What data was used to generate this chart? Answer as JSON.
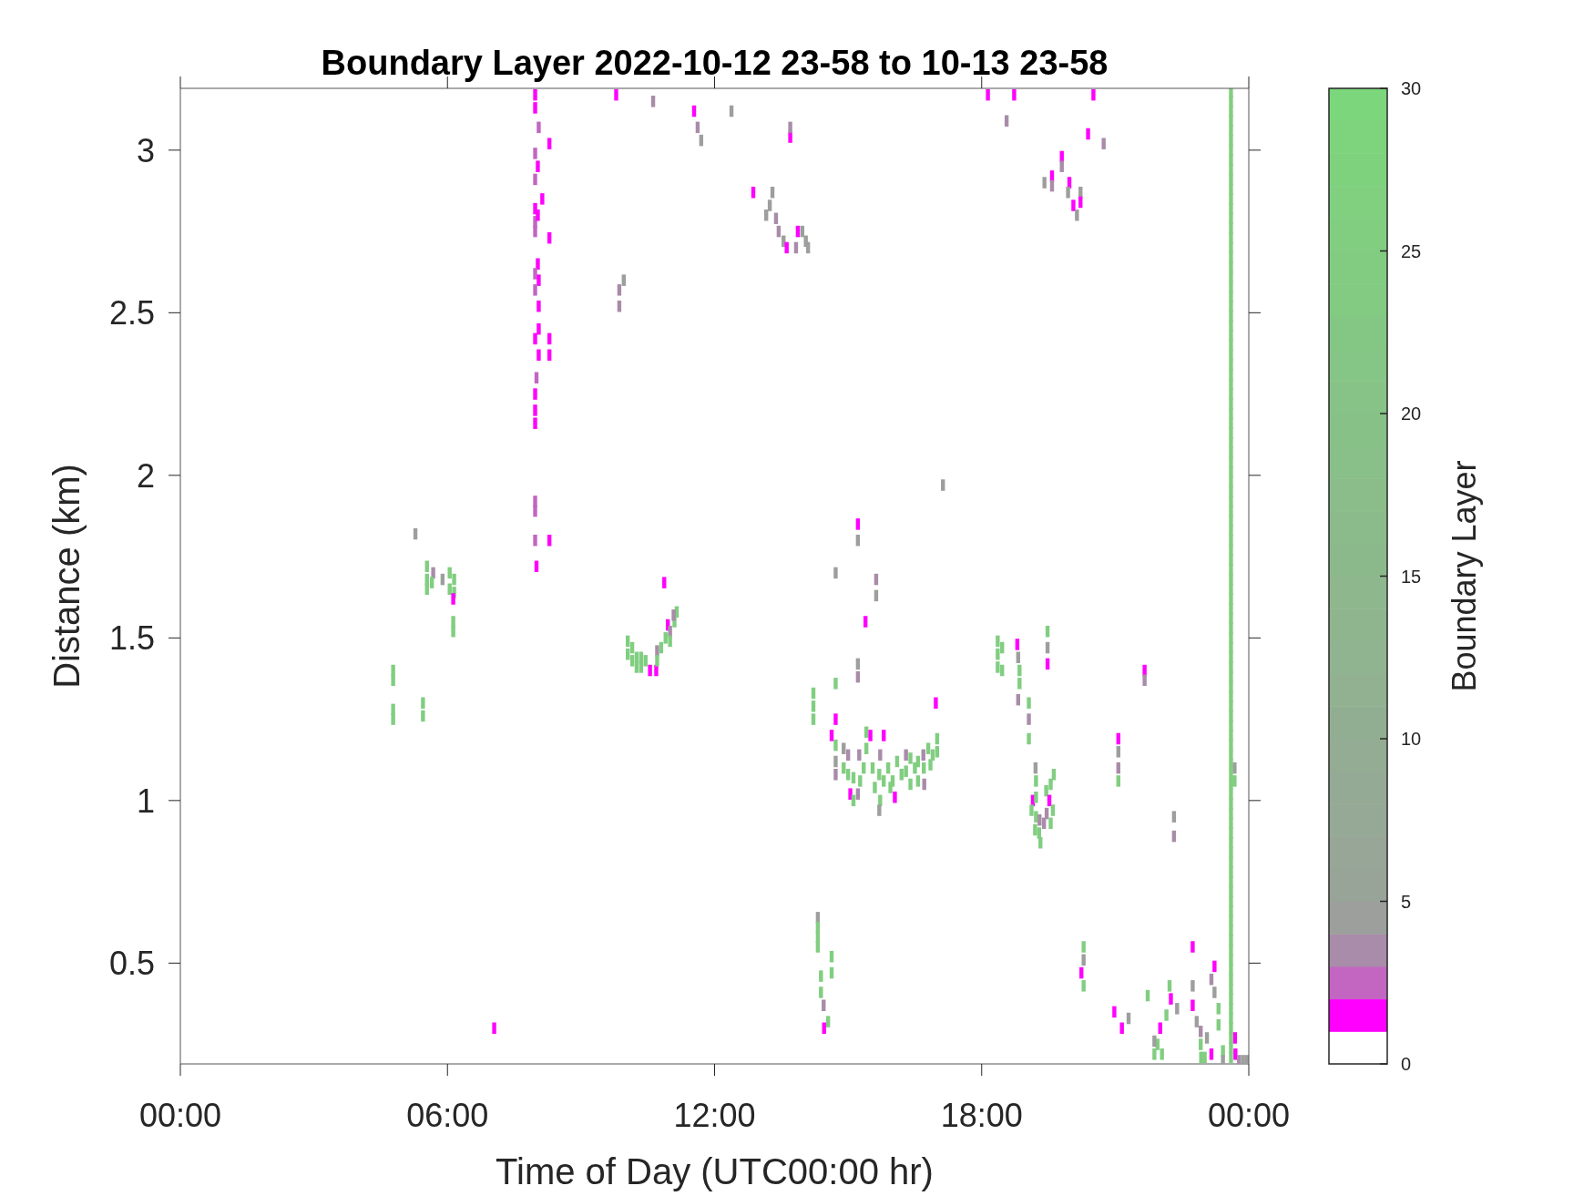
{
  "chart_data": {
    "type": "scatter",
    "title": "Boundary Layer 2022-10-12 23-58 to 10-13 23-58",
    "xlabel": "Time of Day (UTC00:00 hr)",
    "ylabel": "Distance (km)",
    "clabel": "Boundary Layer",
    "x": [
      7.97,
      7.97,
      8.05,
      8.29,
      7.97,
      8.03,
      7.97,
      8.13,
      7.97,
      7.97,
      8.03,
      7.97,
      8.29,
      8.03,
      7.97,
      8.05,
      7.97,
      8.05,
      8.05,
      7.97,
      8.29,
      8.05,
      8.29,
      8,
      7.97,
      7.97,
      7.97,
      7.97,
      7.97,
      7.97,
      8.29,
      8,
      9.79,
      10.62,
      9.96,
      9.86,
      9.86,
      5.28,
      5.54,
      5.54,
      5.54,
      5.68,
      5.65,
      5.89,
      6.05,
      6.15,
      6.15,
      6.05,
      6.13,
      6.13,
      6.13,
      4.78,
      4.78,
      4.78,
      4.78,
      5.45,
      5.45,
      7.05,
      10.05,
      10.05,
      10.15,
      10.15,
      10.25,
      10.25,
      10.35,
      10.35,
      10.45,
      10.55,
      10.69,
      10.71,
      10.71,
      10.8,
      10.95,
      11,
      11.1,
      11.15,
      11,
      11.08,
      10.87,
      10.9,
      11.54,
      12.38,
      11.62,
      11.7,
      13.7,
      13.7,
      12.87,
      13.3,
      13.24,
      13.16,
      13.38,
      13.44,
      13.55,
      13.62,
      13.83,
      13.87,
      13.97,
      14.05,
      14.1,
      17.13,
      15.22,
      15.22,
      14.72,
      15.63,
      15.63,
      15.39,
      15.22,
      15.22,
      14.72,
      14.22,
      14.22,
      14.22,
      16.97,
      14.72,
      14.63,
      14.72,
      14.72,
      14.72,
      14.9,
      14.9,
      15,
      15.05,
      15.12,
      15.12,
      15.25,
      15.27,
      15.22,
      15.41,
      15.41,
      15.5,
      15.8,
      15.55,
      15.6,
      15.7,
      15.72,
      15.72,
      15.7,
      15.9,
      16,
      16.1,
      15.95,
      16.05,
      16.3,
      16.3,
      16.4,
      16.4,
      16.57,
      16.57,
      16.7,
      16.69,
      16.8,
      16.9,
      17,
      17,
      16.71,
      14.32,
      14.32,
      14.32,
      14.63,
      14.63,
      14.39,
      14.39,
      14.45,
      14.46,
      14.55,
      15.8,
      16.2,
      15.35,
      16.5,
      15,
      16.85,
      18.14,
      18.73,
      20.51,
      18.56,
      20.39,
      20.74,
      19.8,
      19.8,
      19.41,
      19.58,
      19.58,
      19.97,
      19.94,
      20.06,
      20.22,
      20.22,
      20.14,
      18.36,
      18.36,
      18.36,
      18.46,
      18.46,
      18.8,
      18.82,
      18.85,
      18.85,
      18.82,
      19.48,
      19.48,
      19.48,
      19.06,
      19.06,
      19.06,
      21.66,
      21.66,
      21.07,
      21.07,
      21.07,
      21.07,
      19.21,
      19.22,
      19.15,
      19.12,
      19.22,
      19.22,
      19.3,
      19.29,
      19.2,
      19.32,
      19.45,
      19.52,
      19.46,
      19.55,
      19.6,
      19.62,
      19.4,
      19.55,
      22.32,
      22.32,
      20.29,
      20.29,
      20.24,
      20.29,
      22.74,
      23.23,
      23.16,
      23.23,
      23.32,
      23.32,
      20.98,
      21.15,
      21.3,
      21.73,
      22.01,
      22.22,
      22.25,
      22.15,
      22.39,
      22.74,
      22.74,
      22.83,
      22.92,
      22.92,
      23.06,
      23.16,
      22.93,
      23.01,
      21.88,
      21.95,
      22.05,
      21.88,
      23.42,
      23.42,
      23.69,
      23.7,
      23.78,
      23.87,
      23.96,
      23.68,
      23.68,
      14.32,
      23.6,
      23.6,
      23.6,
      23.6,
      23.6,
      23.6,
      23.6,
      23.6,
      23.6,
      23.6,
      23.6,
      23.6,
      23.6,
      23.6,
      23.6,
      23.6,
      23.6,
      23.6,
      23.6,
      23.6,
      23.6,
      23.6,
      23.6,
      23.6,
      23.6,
      23.6,
      23.6,
      23.6,
      23.6,
      23.6,
      23.6,
      23.6,
      23.6,
      23.6,
      23.6,
      23.6,
      23.6,
      23.6,
      23.6,
      23.6,
      23.6,
      23.6,
      23.6,
      23.6,
      23.6,
      23.6,
      23.6,
      23.6,
      23.6,
      23.6,
      23.6,
      23.6,
      23.6,
      23.6,
      23.6,
      23.6,
      23.6,
      23.6,
      23.6,
      23.6,
      23.6,
      23.6,
      23.6,
      23.6,
      23.6,
      23.6,
      23.6,
      23.6,
      23.6,
      23.6,
      23.6,
      23.6,
      23.6,
      23.6,
      23.6,
      23.6,
      23.6,
      23.6,
      23.6,
      23.6,
      23.6,
      23.6,
      23.6,
      23.6,
      23.6,
      23.6,
      23.6,
      23.6,
      23.6,
      23.6,
      23.6,
      23.6,
      23.6,
      23.6,
      23.6,
      23.6,
      23.6,
      23.6,
      23.6,
      23.6
    ],
    "values": [
      3.17,
      3.13,
      3.07,
      3.02,
      2.99,
      2.95,
      2.91,
      2.85,
      2.82,
      2.78,
      2.8,
      2.75,
      2.73,
      2.65,
      2.62,
      2.6,
      2.57,
      2.52,
      2.45,
      2.42,
      2.42,
      2.37,
      2.37,
      2.3,
      2.25,
      2.2,
      2.16,
      1.92,
      1.89,
      1.8,
      1.8,
      1.72,
      3.17,
      3.15,
      2.6,
      2.57,
      2.52,
      1.82,
      1.72,
      1.68,
      1.65,
      1.7,
      1.67,
      1.68,
      1.7,
      1.68,
      1.64,
      1.65,
      1.62,
      1.55,
      1.52,
      1.4,
      1.37,
      1.28,
      1.25,
      1.3,
      1.26,
      0.3,
      1.49,
      1.45,
      1.47,
      1.43,
      1.44,
      1.41,
      1.44,
      1.41,
      1.43,
      1.4,
      1.4,
      1.46,
      1.43,
      1.47,
      1.54,
      1.52,
      1.55,
      1.58,
      1.49,
      1.57,
      1.67,
      1.5,
      3.12,
      3.12,
      3.07,
      3.03,
      3.04,
      3.07,
      2.87,
      2.87,
      2.83,
      2.8,
      2.79,
      2.75,
      2.72,
      2.7,
      2.7,
      2.75,
      2.75,
      2.72,
      2.7,
      1.97,
      1.85,
      1.8,
      1.7,
      1.68,
      1.63,
      1.55,
      1.42,
      1.38,
      1.36,
      1.33,
      1.29,
      1.25,
      1.3,
      1.25,
      1.2,
      1.17,
      1.12,
      1.08,
      1.16,
      1.1,
      1.14,
      1.02,
      1.07,
      1,
      1.14,
      1.06,
      1.02,
      1.21,
      1.16,
      1.2,
      1.2,
      1.1,
      1.04,
      1.08,
      1,
      1.14,
      0.97,
      1.1,
      1.06,
      1.12,
      1.04,
      1.01,
      1.09,
      1.14,
      1.05,
      1.13,
      1.12,
      1.06,
      1.1,
      1.14,
      1.16,
      1.14,
      1.15,
      1.19,
      1.05,
      0.64,
      0.61,
      0.55,
      0.52,
      0.47,
      0.46,
      0.41,
      0.37,
      0.3,
      0.32,
      1.06,
      1.08,
      1.1,
      1.1,
      1.08,
      1.11,
      3.17,
      3.17,
      3.17,
      3.09,
      3.05,
      3.02,
      2.98,
      2.95,
      2.9,
      2.92,
      2.89,
      2.9,
      2.87,
      2.83,
      2.87,
      2.84,
      2.8,
      1.49,
      1.45,
      1.41,
      1.47,
      1.4,
      1.48,
      1.44,
      1.4,
      1.36,
      1.31,
      1.52,
      1.47,
      1.42,
      1.3,
      1.25,
      1.19,
      1.4,
      1.37,
      1.19,
      1.15,
      1.1,
      1.06,
      1.1,
      1.06,
      1,
      0.97,
      1.01,
      0.95,
      0.94,
      0.9,
      0.91,
      0.87,
      1.03,
      1,
      0.96,
      1.05,
      0.97,
      1.08,
      0.93,
      0.93,
      0.95,
      0.89,
      0.55,
      0.51,
      0.47,
      0.43,
      0.55,
      0.49,
      0.45,
      0.41,
      0.36,
      0.31,
      0.35,
      0.3,
      0.33,
      0.4,
      0.3,
      0.43,
      0.39,
      0.34,
      0.36,
      0.43,
      0.37,
      0.32,
      0.29,
      0.25,
      0.27,
      0.22,
      0.21,
      0.21,
      0.22,
      0.25,
      0.22,
      0.26,
      0.23,
      0.2,
      0.27,
      0.22,
      0.2,
      0.2,
      0.2,
      1.1,
      1.06,
      0.58,
      0.21,
      0.24,
      0.27,
      0.3,
      0.33,
      0.36,
      0.39,
      0.42,
      0.45,
      0.48,
      0.51,
      0.54,
      0.57,
      0.6,
      0.63,
      0.66,
      0.69,
      0.72,
      0.75,
      0.78,
      0.81,
      0.84,
      0.87,
      0.9,
      0.93,
      0.96,
      0.99,
      1.02,
      1.05,
      1.08,
      1.11,
      1.14,
      1.17,
      1.2,
      1.23,
      1.26,
      1.29,
      1.32,
      1.35,
      1.38,
      1.41,
      1.44,
      1.47,
      1.5,
      1.53,
      1.56,
      1.59,
      1.62,
      1.65,
      1.68,
      1.71,
      1.74,
      1.77,
      1.8,
      1.83,
      1.86,
      1.89,
      1.92,
      1.95,
      1.98,
      2.01,
      2.04,
      2.07,
      2.1,
      2.13,
      2.16,
      2.19,
      2.22,
      2.25,
      2.28,
      2.31,
      2.34,
      2.37,
      2.4,
      2.43,
      2.46,
      2.49,
      2.52,
      2.55,
      2.58,
      2.61,
      2.64,
      2.67,
      2.7,
      2.73,
      2.76,
      2.79,
      2.82,
      2.85,
      2.88,
      2.91,
      2.94,
      2.97,
      3,
      3.03,
      3.06,
      3.09,
      3.12,
      3.15,
      3.18
    ],
    "cvalues": [
      1.5,
      1.5,
      2.5,
      1.5,
      2.5,
      1.5,
      2.5,
      1.5,
      1.5,
      2.5,
      1.5,
      2.5,
      1.5,
      1.5,
      2.5,
      1.5,
      2.5,
      1.5,
      1.5,
      1.5,
      1.5,
      1.5,
      1.5,
      2.5,
      1.5,
      1.5,
      1.5,
      2.5,
      2.5,
      2.5,
      1.5,
      1.5,
      1.5,
      3.5,
      4.5,
      3.5,
      3.5,
      4.5,
      25,
      25,
      25,
      3.5,
      25,
      4.5,
      25,
      25,
      25,
      25,
      1.5,
      25,
      25,
      25,
      25,
      25,
      25,
      25,
      25,
      1.5,
      25,
      25,
      25,
      25,
      25,
      25,
      25,
      25,
      25,
      1.5,
      1.5,
      3.5,
      25,
      25,
      1.5,
      3.5,
      25,
      25,
      25,
      3.5,
      1.5,
      25,
      1.5,
      4.5,
      3.5,
      4.5,
      1.5,
      3.5,
      1.5,
      4.5,
      4.5,
      4.5,
      3.5,
      3.5,
      4.5,
      1.5,
      3.5,
      1.5,
      4.5,
      4.5,
      4.5,
      4.5,
      1.5,
      4.5,
      4.5,
      3.5,
      4.5,
      1.5,
      4.5,
      3.5,
      25,
      25,
      25,
      25,
      1.5,
      1.5,
      1.5,
      25,
      4.5,
      3.5,
      4.5,
      25,
      3.5,
      1.5,
      25,
      25,
      3.5,
      25,
      3.5,
      25,
      25,
      1.5,
      1.5,
      25,
      25,
      25,
      25,
      3.5,
      4.5,
      25,
      25,
      25,
      25,
      1.5,
      25,
      3.5,
      25,
      25,
      25,
      25,
      25,
      3.5,
      25,
      25,
      25,
      25,
      3.5,
      4.5,
      25,
      25,
      25,
      25,
      25,
      25,
      3.5,
      1.5,
      25,
      25,
      25,
      25,
      25,
      25,
      25,
      1.5,
      1.5,
      1.5,
      3.5,
      1.5,
      3.5,
      1.5,
      3.5,
      4.5,
      1.5,
      3.5,
      1.5,
      4.5,
      1.5,
      4.5,
      1.5,
      4.5,
      25,
      25,
      25,
      25,
      25,
      1.5,
      4.5,
      25,
      25,
      3.5,
      25,
      4.5,
      1.5,
      25,
      3.5,
      25,
      1.5,
      3.5,
      1.5,
      4.5,
      3.5,
      25,
      4.5,
      25,
      1.5,
      25,
      25,
      25,
      3.5,
      25,
      25,
      25,
      25,
      1.5,
      3.5,
      25,
      25,
      25,
      3.5,
      25,
      4.5,
      3.5,
      25,
      4.5,
      1.5,
      25,
      1.5,
      1.5,
      3.5,
      4.5,
      25,
      25,
      1.5,
      1.5,
      4.5,
      25,
      1.5,
      25,
      1.5,
      25,
      4.5,
      4.5,
      1.5,
      4.5,
      3.5,
      25,
      4.5,
      1.5,
      25,
      25,
      25,
      25,
      25,
      4.5,
      25,
      4.5,
      1.5,
      1.5,
      3.5,
      4.5,
      4.5,
      4.5,
      25,
      25,
      25,
      25,
      25,
      25,
      25,
      25,
      25,
      25,
      25,
      25,
      25,
      25,
      25,
      25,
      25,
      25,
      25,
      25,
      25,
      25,
      25,
      25,
      25,
      25,
      25,
      25,
      25,
      25,
      25,
      25,
      25,
      25,
      25,
      25,
      25,
      25,
      25,
      25,
      25,
      25,
      25,
      25,
      25,
      25,
      25,
      25,
      25,
      25,
      25,
      25,
      25,
      25,
      25,
      25,
      25,
      25,
      25,
      25,
      25,
      25,
      25,
      25,
      25,
      25,
      25,
      25,
      25,
      25,
      25,
      25,
      25,
      25,
      25,
      25,
      25,
      25,
      25,
      25,
      25,
      25,
      25,
      25,
      25,
      25,
      25,
      25,
      25,
      25,
      25,
      25,
      25,
      25,
      25,
      25,
      25,
      25,
      25,
      25,
      25,
      25
    ],
    "xlim": [
      0,
      24
    ],
    "xticks": [
      {
        "value": 0,
        "label": "00:00"
      },
      {
        "value": 6,
        "label": "06:00"
      },
      {
        "value": 12,
        "label": "12:00"
      },
      {
        "value": 18,
        "label": "18:00"
      },
      {
        "value": 24,
        "label": "00:00"
      }
    ],
    "ylim": [
      0.19,
      3.19
    ],
    "yticks": [
      0.5,
      1,
      1.5,
      2,
      2.5,
      3
    ],
    "clim": [
      0,
      30
    ],
    "cticks": [
      0,
      5,
      10,
      15,
      20,
      25,
      30
    ],
    "marker": "square"
  }
}
